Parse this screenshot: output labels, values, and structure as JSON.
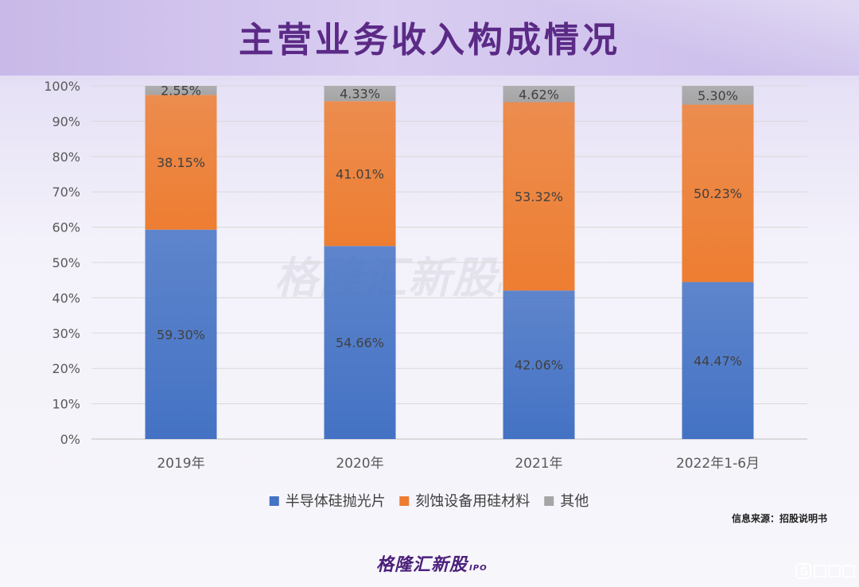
{
  "title": "主营业务收入构成情况",
  "source": "信息来源：招股说明书",
  "logo": {
    "text": "格隆汇新股",
    "suffix": "IPO"
  },
  "watermark": {
    "text": "格隆汇新股",
    "suffix": "IPO"
  },
  "colors": {
    "series1": "#4472c4",
    "series2": "#ed7d31",
    "series3": "#a5a5a5",
    "title": "#5b2a86"
  },
  "chart_data": {
    "type": "bar",
    "stacked": true,
    "categories": [
      "2019年",
      "2020年",
      "2021年",
      "2022年1-6月"
    ],
    "series": [
      {
        "name": "半导体硅抛光片",
        "values": [
          59.3,
          54.66,
          42.06,
          44.47
        ],
        "labels": [
          "59.30%",
          "54.66%",
          "42.06%",
          "44.47%"
        ]
      },
      {
        "name": "刻蚀设备用硅材料",
        "values": [
          38.15,
          41.01,
          53.32,
          50.23
        ],
        "labels": [
          "38.15%",
          "41.01%",
          "53.32%",
          "50.23%"
        ]
      },
      {
        "name": "其他",
        "values": [
          2.55,
          4.33,
          4.62,
          5.3
        ],
        "labels": [
          "2.55%",
          "4.33%",
          "4.62%",
          "5.30%"
        ]
      }
    ],
    "y_ticks": [
      "0%",
      "10%",
      "20%",
      "30%",
      "40%",
      "50%",
      "60%",
      "70%",
      "80%",
      "90%",
      "100%"
    ],
    "ylim": [
      0,
      100
    ],
    "grid": true,
    "legend_position": "bottom"
  }
}
